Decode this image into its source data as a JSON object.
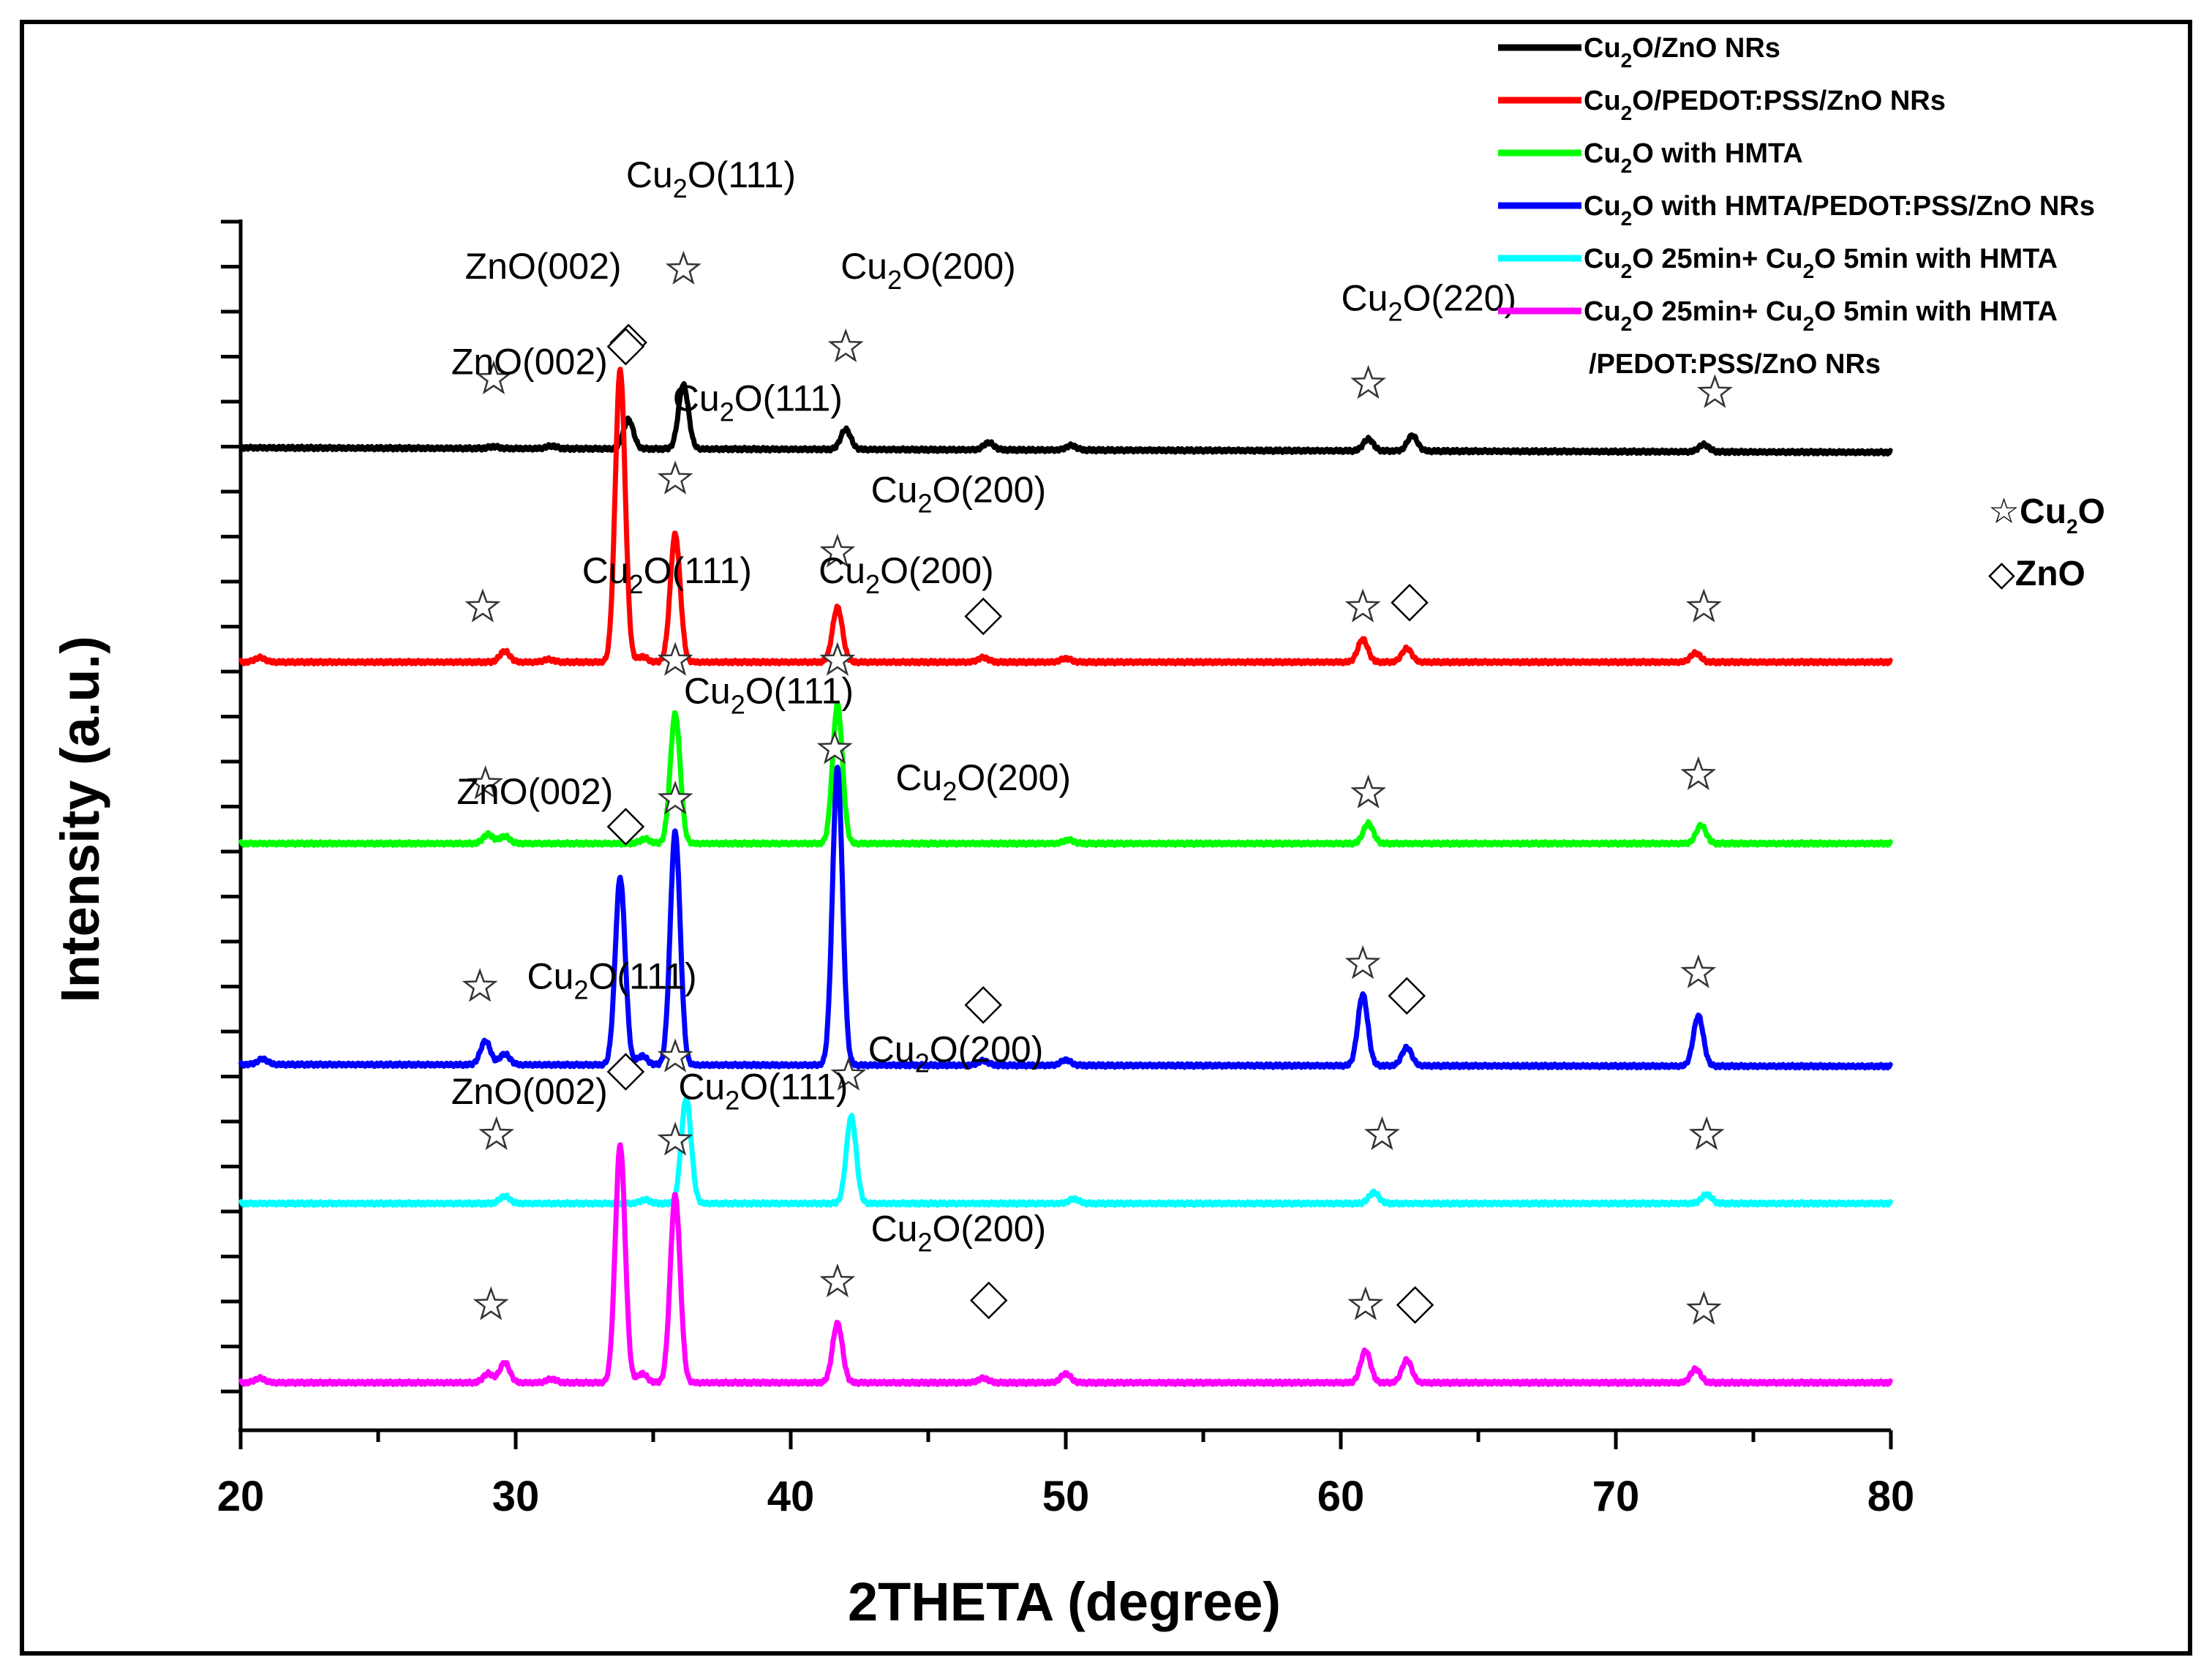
{
  "chart_data": {
    "type": "line",
    "title": "",
    "xlabel": "2THETA (degree)",
    "ylabel": "Intensity (a.u.)",
    "xlim": [
      20,
      80
    ],
    "xticks": [
      "20",
      "30",
      "40",
      "50",
      "60",
      "70",
      "80"
    ],
    "grid": false,
    "legend_position": "top-right",
    "marker_legend": [
      {
        "symbol": "☆",
        "label": "Cu",
        "sub": "2",
        "label_after": "O"
      },
      {
        "symbol": "◇",
        "label": "ZnO",
        "sub": "",
        "label_after": ""
      }
    ],
    "series": [
      {
        "name": "Cu2O/ZnO NRs",
        "legend_parts": [
          [
            "Cu",
            ""
          ],
          [
            "2",
            "sub"
          ],
          [
            "O/ZnO NRs",
            ""
          ]
        ],
        "color": "#000000",
        "baseline": 0.0,
        "slope": -0.05,
        "peaks": [
          [
            29.2,
            0.02
          ],
          [
            31.3,
            0.03
          ],
          [
            34.1,
            0.32
          ],
          [
            36.1,
            0.7
          ],
          [
            42.0,
            0.22
          ],
          [
            47.2,
            0.08
          ],
          [
            50.2,
            0.05
          ],
          [
            61.0,
            0.13
          ],
          [
            62.6,
            0.17
          ],
          [
            73.2,
            0.08
          ]
        ],
        "markers": [
          {
            "type": "star",
            "x": 29.2,
            "h": 0.75
          },
          {
            "type": "diamond",
            "x": 34.1,
            "h": 1.15
          },
          {
            "type": "star",
            "x": 36.1,
            "h": 1.95
          },
          {
            "type": "star",
            "x": 42.0,
            "h": 1.1
          },
          {
            "type": "star",
            "x": 61.0,
            "h": 0.7
          },
          {
            "type": "star",
            "x": 73.6,
            "h": 0.6
          }
        ],
        "annotations": [
          {
            "x": 31.0,
            "h": 1.85,
            "parts": [
              [
                "ZnO(002)",
                ""
              ]
            ]
          },
          {
            "x": 37.1,
            "h": 2.85,
            "parts": [
              [
                "Cu",
                ""
              ],
              [
                "2",
                "sub"
              ],
              [
                "O(111)",
                ""
              ]
            ]
          },
          {
            "x": 45.0,
            "h": 1.85,
            "parts": [
              [
                "Cu",
                ""
              ],
              [
                "2",
                "sub"
              ],
              [
                "O(200)",
                ""
              ]
            ]
          },
          {
            "x": 63.2,
            "h": 1.5,
            "parts": [
              [
                "Cu",
                ""
              ],
              [
                "2",
                "sub"
              ],
              [
                "O(220)",
                ""
              ]
            ]
          }
        ]
      },
      {
        "name": "Cu2O/PEDOT:PSS/ZnO NRs",
        "legend_parts": [
          [
            "Cu",
            ""
          ],
          [
            "2",
            "sub"
          ],
          [
            "O/PEDOT:PSS/ZnO NRs",
            ""
          ]
        ],
        "color": "#ff0000",
        "baseline": 0.0,
        "slope": 0.0,
        "peaks": [
          [
            20.7,
            0.05
          ],
          [
            29.6,
            0.12
          ],
          [
            31.2,
            0.03
          ],
          [
            33.8,
            3.2
          ],
          [
            34.6,
            0.06
          ],
          [
            35.8,
            1.4
          ],
          [
            41.7,
            0.6
          ],
          [
            47.0,
            0.05
          ],
          [
            50.0,
            0.04
          ],
          [
            60.8,
            0.25
          ],
          [
            62.4,
            0.15
          ],
          [
            72.9,
            0.1
          ]
        ],
        "markers": [
          {
            "type": "star",
            "x": 28.8,
            "h": 0.6
          },
          {
            "type": "diamond",
            "x": 34.0,
            "h": 3.45
          },
          {
            "type": "star",
            "x": 35.8,
            "h": 2.0
          },
          {
            "type": "star",
            "x": 41.7,
            "h": 1.2
          },
          {
            "type": "diamond",
            "x": 47.0,
            "h": 0.5
          },
          {
            "type": "star",
            "x": 60.8,
            "h": 0.6
          },
          {
            "type": "diamond",
            "x": 62.5,
            "h": 0.65
          },
          {
            "type": "star",
            "x": 73.2,
            "h": 0.6
          }
        ],
        "annotations": [
          {
            "x": 30.5,
            "h": 3.15,
            "parts": [
              [
                "ZnO(002)",
                ""
              ]
            ]
          },
          {
            "x": 38.8,
            "h": 2.75,
            "parts": [
              [
                "Cu",
                ""
              ],
              [
                "2",
                "sub"
              ],
              [
                "O(111)",
                ""
              ]
            ]
          },
          {
            "x": 46.1,
            "h": 1.75,
            "parts": [
              [
                "Cu",
                ""
              ],
              [
                "2",
                "sub"
              ],
              [
                "O(200)",
                ""
              ]
            ]
          }
        ]
      },
      {
        "name": "Cu2O with HMTA",
        "legend_parts": [
          [
            "Cu",
            ""
          ],
          [
            "2",
            "sub"
          ],
          [
            "O with HMTA",
            ""
          ]
        ],
        "color": "#00ff00",
        "baseline": 0.0,
        "slope": 0.0,
        "peaks": [
          [
            29.0,
            0.1
          ],
          [
            29.6,
            0.08
          ],
          [
            34.7,
            0.05
          ],
          [
            35.8,
            1.42
          ],
          [
            41.7,
            1.52
          ],
          [
            50.1,
            0.04
          ],
          [
            61.0,
            0.22
          ],
          [
            73.1,
            0.2
          ]
        ],
        "markers": [
          {
            "type": "star",
            "x": 28.9,
            "h": 0.65
          },
          {
            "type": "star",
            "x": 35.8,
            "h": 2.0
          },
          {
            "type": "star",
            "x": 41.7,
            "h": 2.0
          },
          {
            "type": "star",
            "x": 61.0,
            "h": 0.55
          },
          {
            "type": "star",
            "x": 73.0,
            "h": 0.75
          }
        ],
        "annotations": [
          {
            "x": 35.5,
            "h": 2.85,
            "parts": [
              [
                "Cu",
                ""
              ],
              [
                "2",
                "sub"
              ],
              [
                "O(111)",
                ""
              ]
            ]
          },
          {
            "x": 44.2,
            "h": 2.85,
            "parts": [
              [
                "Cu",
                ""
              ],
              [
                "2",
                "sub"
              ],
              [
                "O(200)",
                ""
              ]
            ]
          }
        ]
      },
      {
        "name": "Cu2O with HMTA/PEDOT:PSS/ZnO NRs",
        "legend_parts": [
          [
            "Cu",
            ""
          ],
          [
            "2",
            "sub"
          ],
          [
            "O with HMTA/PEDOT:PSS/ZnO NRs",
            ""
          ]
        ],
        "color": "#0000ff",
        "baseline": 0.0,
        "slope": -0.02,
        "peaks": [
          [
            20.8,
            0.06
          ],
          [
            28.9,
            0.26
          ],
          [
            29.6,
            0.12
          ],
          [
            33.8,
            2.05
          ],
          [
            34.6,
            0.1
          ],
          [
            35.8,
            2.55
          ],
          [
            41.7,
            3.25
          ],
          [
            47.0,
            0.05
          ],
          [
            50.0,
            0.06
          ],
          [
            60.8,
            0.78
          ],
          [
            62.4,
            0.2
          ],
          [
            73.0,
            0.55
          ]
        ],
        "markers": [
          {
            "type": "star",
            "x": 28.7,
            "h": 0.85
          },
          {
            "type": "diamond",
            "x": 34.0,
            "h": 2.6
          },
          {
            "type": "star",
            "x": 35.8,
            "h": 2.9
          },
          {
            "type": "star",
            "x": 41.6,
            "h": 3.45
          },
          {
            "type": "diamond",
            "x": 47.0,
            "h": 0.65
          },
          {
            "type": "star",
            "x": 60.8,
            "h": 1.1
          },
          {
            "type": "diamond",
            "x": 62.4,
            "h": 0.75
          },
          {
            "type": "star",
            "x": 73.0,
            "h": 1.0
          }
        ],
        "annotations": [
          {
            "x": 30.7,
            "h": 2.85,
            "parts": [
              [
                "ZnO(002)",
                ""
              ]
            ]
          },
          {
            "x": 39.2,
            "h": 3.95,
            "parts": [
              [
                "Cu",
                ""
              ],
              [
                "2",
                "sub"
              ],
              [
                "O(111)",
                ""
              ]
            ]
          },
          {
            "x": 47.0,
            "h": 3.0,
            "parts": [
              [
                "Cu",
                ""
              ],
              [
                "2",
                "sub"
              ],
              [
                "O(200)",
                ""
              ]
            ]
          }
        ]
      },
      {
        "name": "Cu2O 25min+ Cu2O 5min with HMTA",
        "legend_parts": [
          [
            "Cu",
            ""
          ],
          [
            "2",
            "sub"
          ],
          [
            "O 25min+ Cu",
            ""
          ],
          [
            "2",
            "sub"
          ],
          [
            "O 5min with HMTA",
            ""
          ]
        ],
        "color": "#00ffff",
        "baseline": 0.0,
        "slope": 0.0,
        "peaks": [
          [
            29.6,
            0.08
          ],
          [
            34.7,
            0.04
          ],
          [
            36.2,
            1.15
          ],
          [
            42.2,
            0.95
          ],
          [
            50.3,
            0.05
          ],
          [
            61.2,
            0.12
          ],
          [
            73.3,
            0.1
          ]
        ],
        "markers": [
          {
            "type": "star",
            "x": 29.3,
            "h": 0.75
          },
          {
            "type": "star",
            "x": 35.8,
            "h": 1.6
          },
          {
            "type": "star",
            "x": 42.1,
            "h": 1.4
          },
          {
            "type": "star",
            "x": 61.5,
            "h": 0.75
          },
          {
            "type": "star",
            "x": 73.3,
            "h": 0.75
          }
        ],
        "annotations": [
          {
            "x": 33.5,
            "h": 2.35,
            "parts": [
              [
                "Cu",
                ""
              ],
              [
                "2",
                "sub"
              ],
              [
                "O(111)",
                ""
              ]
            ]
          },
          {
            "x": 46.0,
            "h": 1.55,
            "parts": [
              [
                "Cu",
                ""
              ],
              [
                "2",
                "sub"
              ],
              [
                "O(200)",
                ""
              ]
            ]
          }
        ]
      },
      {
        "name": "Cu2O 25min+ Cu2O 5min with HMTA /PEDOT:PSS/ZnO NRs",
        "legend_parts": [
          [
            "Cu",
            ""
          ],
          [
            "2",
            "sub"
          ],
          [
            "O 25min+ Cu",
            ""
          ],
          [
            "2",
            "sub"
          ],
          [
            "O 5min with HMTA",
            ""
          ]
        ],
        "legend_line2": "/PEDOT:PSS/ZnO NRs",
        "color": "#ff00ff",
        "baseline": 0.0,
        "slope": 0.0,
        "peaks": [
          [
            20.7,
            0.05
          ],
          [
            29.0,
            0.1
          ],
          [
            29.6,
            0.22
          ],
          [
            31.3,
            0.04
          ],
          [
            33.8,
            2.6
          ],
          [
            34.6,
            0.1
          ],
          [
            35.8,
            2.05
          ],
          [
            41.7,
            0.65
          ],
          [
            47.0,
            0.05
          ],
          [
            50.0,
            0.1
          ],
          [
            60.9,
            0.35
          ],
          [
            62.4,
            0.25
          ],
          [
            72.9,
            0.15
          ]
        ],
        "markers": [
          {
            "type": "star",
            "x": 29.1,
            "h": 0.85
          },
          {
            "type": "diamond",
            "x": 34.0,
            "h": 3.4
          },
          {
            "type": "star",
            "x": 35.8,
            "h": 2.65
          },
          {
            "type": "star",
            "x": 41.7,
            "h": 1.1
          },
          {
            "type": "diamond",
            "x": 47.2,
            "h": 0.9
          },
          {
            "type": "star",
            "x": 60.9,
            "h": 0.85
          },
          {
            "type": "diamond",
            "x": 62.7,
            "h": 0.85
          },
          {
            "type": "star",
            "x": 73.2,
            "h": 0.8
          }
        ],
        "annotations": [
          {
            "x": 30.5,
            "h": 3.05,
            "parts": [
              [
                "ZnO(002)",
                ""
              ]
            ]
          },
          {
            "x": 39.0,
            "h": 3.1,
            "parts": [
              [
                "Cu",
                ""
              ],
              [
                "2",
                "sub"
              ],
              [
                "O(111)",
                ""
              ]
            ]
          },
          {
            "x": 46.1,
            "h": 1.55,
            "parts": [
              [
                "Cu",
                ""
              ],
              [
                "2",
                "sub"
              ],
              [
                "O(200)",
                ""
              ]
            ]
          }
        ]
      }
    ]
  }
}
